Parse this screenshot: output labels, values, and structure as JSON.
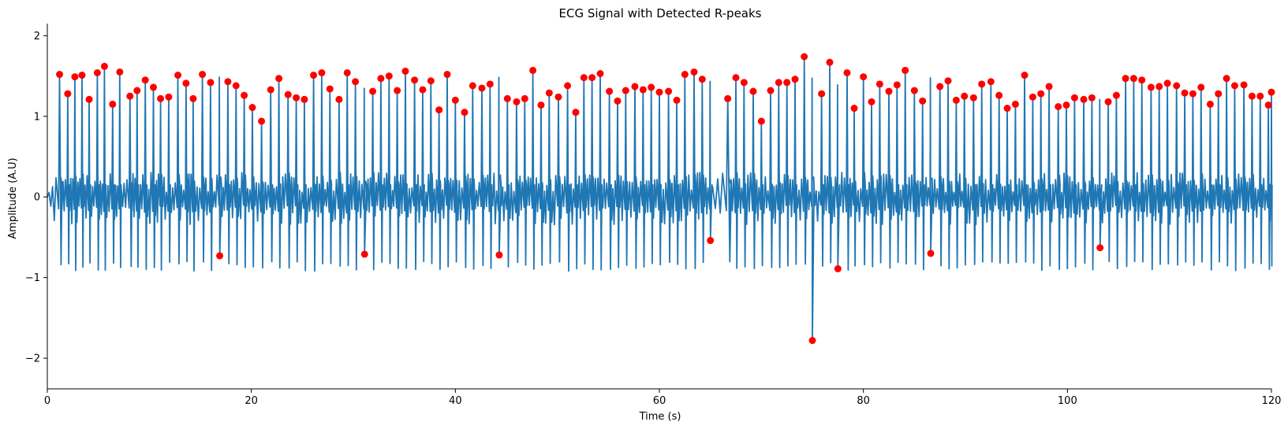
{
  "chart_data": {
    "type": "line",
    "title": "ECG Signal with Detected R-peaks",
    "xlabel": "Time (s)",
    "ylabel": "Amplitude (A.U)",
    "xlim": [
      0,
      120
    ],
    "ylim": [
      -2.38,
      2.15
    ],
    "xticks": [
      "0",
      "20",
      "40",
      "60",
      "80",
      "100",
      "120"
    ],
    "yticks": [
      "−2",
      "−1",
      "0",
      "1",
      "2"
    ],
    "grid": false,
    "series": [
      {
        "kind": "line",
        "color": "#1f77b4",
        "description_values": {
          "baseline_oscillation_amplitude": 0.25,
          "negative_trough": -0.85
        }
      },
      {
        "kind": "markers",
        "color": "#ff0000",
        "x": [
          1.2,
          2.0,
          2.7,
          3.4,
          4.1,
          4.9,
          5.6,
          6.4,
          7.1,
          8.1,
          8.8,
          9.6,
          10.4,
          11.1,
          11.9,
          12.8,
          13.6,
          14.3,
          15.2,
          16.0,
          16.9,
          17.7,
          18.5,
          19.3,
          20.1,
          21.0,
          21.9,
          22.7,
          23.6,
          24.4,
          25.2,
          26.1,
          26.9,
          27.7,
          28.6,
          29.4,
          30.2,
          31.1,
          31.9,
          32.7,
          33.5,
          34.3,
          35.1,
          36.0,
          36.8,
          37.6,
          38.4,
          39.2,
          40.0,
          40.9,
          41.7,
          42.6,
          43.4,
          44.3,
          45.1,
          46.0,
          46.8,
          47.6,
          48.4,
          49.2,
          50.1,
          51.0,
          51.8,
          52.6,
          53.4,
          54.2,
          55.1,
          55.9,
          56.7,
          57.6,
          58.4,
          59.2,
          60.0,
          60.9,
          61.7,
          62.5,
          63.4,
          64.2,
          65.0,
          66.7,
          67.5,
          68.3,
          69.2,
          70.0,
          70.9,
          71.7,
          72.5,
          73.3,
          74.2,
          75.0,
          75.9,
          76.7,
          77.5,
          78.4,
          79.1,
          80.0,
          80.8,
          81.6,
          82.5,
          83.3,
          84.1,
          85.0,
          85.8,
          86.6,
          87.5,
          88.3,
          89.1,
          89.9,
          90.8,
          91.6,
          92.5,
          93.3,
          94.1,
          94.9,
          95.8,
          96.6,
          97.4,
          98.2,
          99.1,
          99.9,
          100.7,
          101.6,
          102.4,
          103.2,
          104.0,
          104.8,
          105.7,
          106.5,
          107.3,
          108.2,
          109.0,
          109.8,
          110.7,
          111.5,
          112.3,
          113.1,
          114.0,
          114.8,
          115.6,
          116.4,
          117.3,
          118.1,
          118.9,
          119.7,
          120.0
        ],
        "y": [
          1.52,
          1.28,
          1.49,
          1.51,
          1.21,
          1.54,
          1.62,
          1.15,
          1.55,
          1.25,
          1.32,
          1.45,
          1.36,
          1.22,
          1.24,
          1.51,
          1.41,
          1.22,
          1.52,
          1.42,
          -0.73,
          1.43,
          1.38,
          1.26,
          1.11,
          0.94,
          1.33,
          1.47,
          1.27,
          1.23,
          1.21,
          1.51,
          1.54,
          1.34,
          1.21,
          1.54,
          1.43,
          -0.71,
          1.31,
          1.47,
          1.5,
          1.32,
          1.56,
          1.45,
          1.33,
          1.44,
          1.08,
          1.52,
          1.2,
          1.05,
          1.38,
          1.35,
          1.4,
          -0.72,
          1.22,
          1.18,
          1.22,
          1.57,
          1.14,
          1.29,
          1.24,
          1.38,
          1.05,
          1.48,
          1.48,
          1.53,
          1.31,
          1.19,
          1.32,
          1.37,
          1.33,
          1.36,
          1.3,
          1.31,
          1.2,
          1.52,
          1.55,
          1.46,
          -0.54,
          1.22,
          1.48,
          1.42,
          1.31,
          0.94,
          1.32,
          1.42,
          1.42,
          1.46,
          1.74,
          -1.78,
          1.28,
          1.67,
          -0.89,
          1.54,
          1.1,
          1.49,
          1.18,
          1.4,
          1.31,
          1.39,
          1.57,
          1.32,
          1.19,
          -0.7,
          1.37,
          1.44,
          1.2,
          1.25,
          1.23,
          1.4,
          1.43,
          1.26,
          1.1,
          1.15,
          1.51,
          1.24,
          1.28,
          1.37,
          1.12,
          1.14,
          1.23,
          1.21,
          1.23,
          -0.63,
          1.18,
          1.26,
          1.47,
          1.47,
          1.45,
          1.36,
          1.37,
          1.41,
          1.38,
          1.29,
          1.28,
          1.36,
          1.15,
          1.28,
          1.47,
          1.38,
          1.39,
          1.25,
          1.25,
          1.14,
          1.3
        ]
      }
    ]
  }
}
